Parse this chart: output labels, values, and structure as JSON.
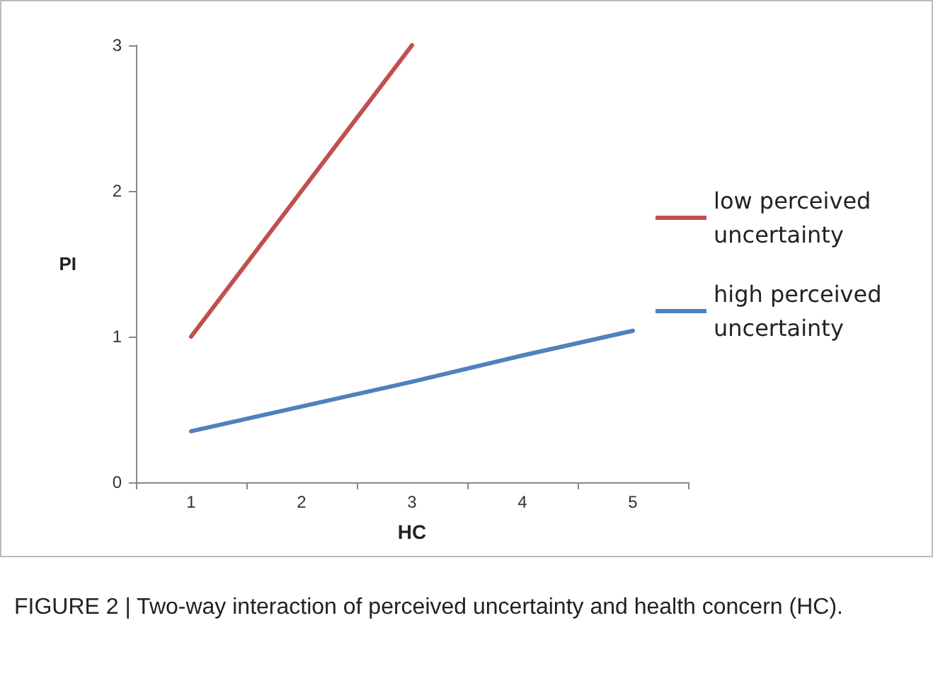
{
  "chart_data": {
    "type": "line",
    "xlabel": "HC",
    "ylabel": "PI",
    "categories": [
      "1",
      "2",
      "3",
      "4",
      "5"
    ],
    "series": [
      {
        "name": "low perceived uncertainty",
        "color": "#c0504d",
        "values": [
          1,
          2,
          3,
          null,
          null
        ]
      },
      {
        "name": "high perceived uncertainty",
        "color": "#4f81bd",
        "values": [
          0.35,
          0.52,
          0.69,
          0.87,
          1.04
        ]
      }
    ],
    "ylim": [
      0,
      3
    ],
    "yticks": [
      0,
      1,
      2,
      3
    ],
    "grid": false,
    "legend": "right",
    "marker": "none",
    "line_style": "solid",
    "annotations": [
      "FIGURE 2 | Two-way interaction of perceived uncertainty and health concern (HC)."
    ]
  }
}
